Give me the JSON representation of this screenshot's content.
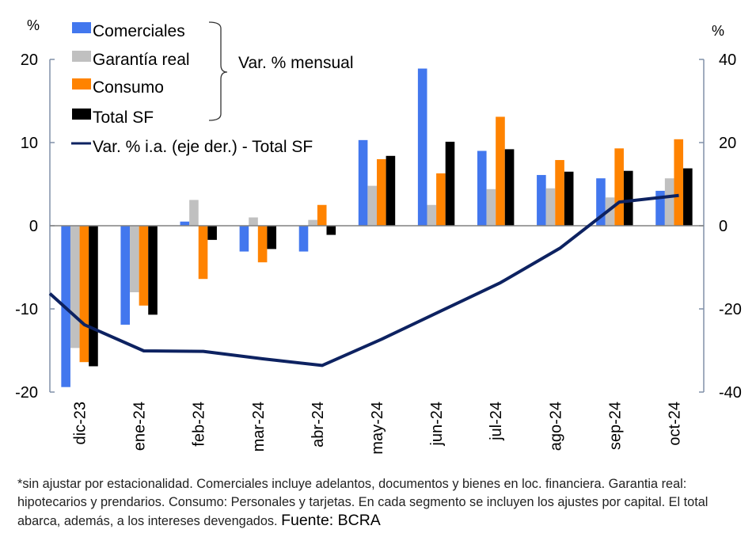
{
  "chart_data": {
    "type": "bar",
    "title": "",
    "categories": [
      "dic-23",
      "ene-24",
      "feb-24",
      "mar-24",
      "abr-24",
      "may-24",
      "jun-24",
      "jul-24",
      "ago-24",
      "sep-24",
      "oct-24"
    ],
    "left_axis": {
      "label": "%",
      "ylim": [
        -20,
        20
      ],
      "ticks": [
        20,
        10,
        0,
        -10,
        -20
      ]
    },
    "right_axis": {
      "label": "%",
      "ylim": [
        -40,
        40
      ],
      "ticks": [
        40,
        20,
        0,
        -20,
        -40
      ]
    },
    "grid": false,
    "legend_placement": "top-left",
    "series": [
      {
        "name": "Comerciales",
        "type": "bar",
        "axis": "left",
        "color": "#4277EE",
        "values": [
          -19.4,
          -11.9,
          0.5,
          -3.1,
          -3.1,
          10.3,
          18.9,
          9.0,
          6.1,
          5.7,
          4.2
        ]
      },
      {
        "name": "Garantía real",
        "type": "bar",
        "axis": "left",
        "color": "#C0C0C0",
        "values": [
          -14.7,
          -8.0,
          3.1,
          1.0,
          0.7,
          4.8,
          2.5,
          4.4,
          4.5,
          3.4,
          5.7
        ]
      },
      {
        "name": "Consumo",
        "type": "bar",
        "axis": "left",
        "color": "#FF8300",
        "values": [
          -16.4,
          -9.6,
          -6.4,
          -4.4,
          2.5,
          8.0,
          6.3,
          13.1,
          7.9,
          9.3,
          10.4
        ]
      },
      {
        "name": "Total SF",
        "type": "bar",
        "axis": "left",
        "color": "#000000",
        "values": [
          -16.9,
          -10.7,
          -1.7,
          -2.8,
          -1.1,
          8.4,
          10.1,
          9.2,
          6.5,
          6.6,
          6.9
        ]
      },
      {
        "name": "Var. % i.a. (eje der.) - Total SF",
        "type": "line",
        "axis": "right",
        "color": "#0D2261",
        "edge_start_value": -16.3,
        "values": [
          -23.8,
          -30.1,
          -30.2,
          -32.0,
          -33.6,
          -27.3,
          -20.5,
          -13.7,
          -5.4,
          5.7,
          7.3
        ]
      }
    ],
    "brace_annotation": "Var. % mensual",
    "axis_color": "#8090A8",
    "zero_line_color": "#808080"
  },
  "footnote": {
    "text": "*sin ajustar por estacionalidad. Comerciales incluye adelantos, documentos y bienes en loc. financiera. Garantia real: hipotecarios y prendarios. Consumo: Personales y tarjetas. En cada segmento se incluyen los ajustes por capital. El total abarca, además, a los intereses devengados.",
    "source": "Fuente: BCRA"
  }
}
